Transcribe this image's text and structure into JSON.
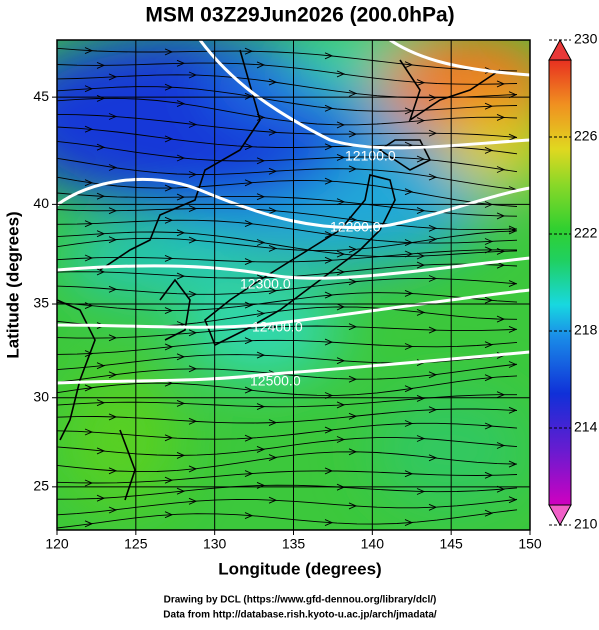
{
  "title": "MSM 03Z29Jun2026 (200.0hPa)",
  "x_axis": {
    "label": "Longitude (degrees)",
    "lim": [
      120,
      150
    ],
    "ticks": [
      120,
      125,
      130,
      135,
      140,
      145,
      150
    ]
  },
  "y_axis": {
    "label": "Latitude  (degrees)",
    "lim": [
      22.5,
      47.5
    ],
    "ticks": [
      25,
      30,
      35,
      40,
      45
    ]
  },
  "colorbar": {
    "lim": [
      210,
      230
    ],
    "ticks": [
      210,
      214,
      218,
      222,
      226,
      230
    ]
  },
  "contour_labels": [
    "12100.0",
    "12200.0",
    "12300.0",
    "12400.0",
    "12500.0"
  ],
  "credits": [
    "Drawing by DCL (https://www.gfd-dennou.org/library/dcl/)",
    "Data from http://database.rish.kyoto-u.ac.jp/arch/jmadata/"
  ]
}
